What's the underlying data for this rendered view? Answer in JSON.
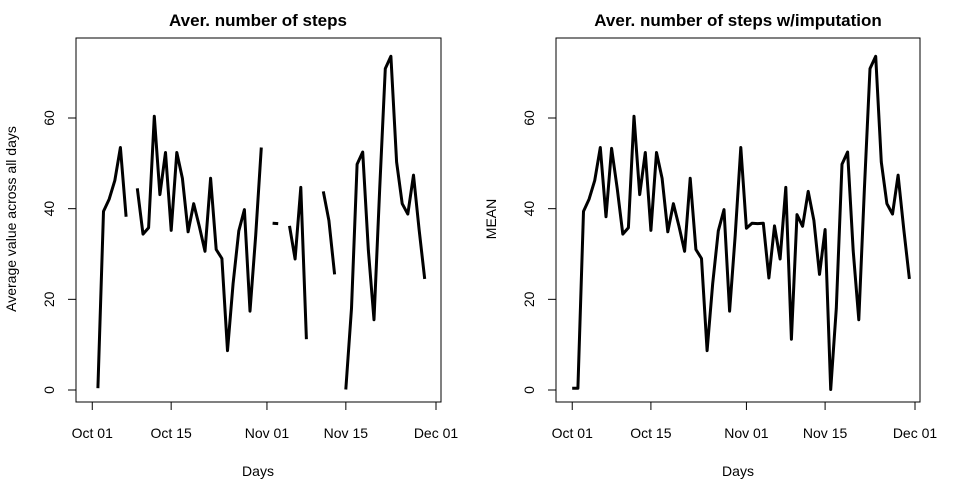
{
  "chart_data": [
    {
      "type": "line",
      "title": "Aver. number of steps",
      "xlabel": "Days",
      "ylabel": "Average value across all days",
      "xlim": [
        "2012-09-29",
        "2012-12-01"
      ],
      "ylim": [
        0,
        75
      ],
      "grid": false,
      "x_ticks": [
        {
          "value": "2012-10-01",
          "label": "Oct 01"
        },
        {
          "value": "2012-10-15",
          "label": "Oct 15"
        },
        {
          "value": "2012-11-01",
          "label": "Nov 01"
        },
        {
          "value": "2012-11-15",
          "label": "Nov 15"
        },
        {
          "value": "2012-12-01",
          "label": "Dec 01"
        }
      ],
      "y_ticks": [
        {
          "value": 0,
          "label": "0"
        },
        {
          "value": 20,
          "label": "20"
        },
        {
          "value": 40,
          "label": "40"
        },
        {
          "value": 60,
          "label": "60"
        }
      ],
      "color": "#000000",
      "series": [
        {
          "x": [
            "2012-10-01",
            "2012-10-02",
            "2012-10-03",
            "2012-10-04",
            "2012-10-05",
            "2012-10-06",
            "2012-10-07",
            "2012-10-08",
            "2012-10-09",
            "2012-10-10",
            "2012-10-11",
            "2012-10-12",
            "2012-10-13",
            "2012-10-14",
            "2012-10-15",
            "2012-10-16",
            "2012-10-17",
            "2012-10-18",
            "2012-10-19",
            "2012-10-20",
            "2012-10-21",
            "2012-10-22",
            "2012-10-23",
            "2012-10-24",
            "2012-10-25",
            "2012-10-26",
            "2012-10-27",
            "2012-10-28",
            "2012-10-29",
            "2012-10-30",
            "2012-10-31",
            "2012-11-01",
            "2012-11-02",
            "2012-11-03",
            "2012-11-04",
            "2012-11-05",
            "2012-11-06",
            "2012-11-07",
            "2012-11-08",
            "2012-11-09",
            "2012-11-10",
            "2012-11-11",
            "2012-11-12",
            "2012-11-13",
            "2012-11-14",
            "2012-11-15",
            "2012-11-16",
            "2012-11-17",
            "2012-11-18",
            "2012-11-19",
            "2012-11-20",
            "2012-11-21",
            "2012-11-22",
            "2012-11-23",
            "2012-11-24",
            "2012-11-25",
            "2012-11-26",
            "2012-11-27",
            "2012-11-28",
            "2012-11-29",
            "2012-11-30"
          ],
          "y": [
            null,
            0.4,
            39.4,
            42.1,
            46.2,
            53.5,
            38.2,
            null,
            44.5,
            34.4,
            35.8,
            60.4,
            43.1,
            52.4,
            35.2,
            52.4,
            46.7,
            34.9,
            41.1,
            36.1,
            30.6,
            46.7,
            31.0,
            29.0,
            8.7,
            23.5,
            35.1,
            39.8,
            17.4,
            34.1,
            53.5,
            null,
            36.8,
            36.7,
            null,
            36.2,
            28.9,
            44.7,
            11.2,
            null,
            null,
            43.8,
            37.4,
            25.5,
            null,
            0.1,
            18.0,
            49.8,
            52.5,
            30.7,
            15.5,
            44.4,
            70.9,
            73.6,
            50.3,
            41.1,
            38.8,
            47.4,
            35.4,
            24.5,
            null
          ]
        }
      ]
    },
    {
      "type": "line",
      "title": "Aver. number of steps w/imputation",
      "xlabel": "Days",
      "ylabel": "MEAN",
      "xlim": [
        "2012-09-29",
        "2012-12-01"
      ],
      "ylim": [
        0,
        75
      ],
      "grid": false,
      "x_ticks": [
        {
          "value": "2012-10-01",
          "label": "Oct 01"
        },
        {
          "value": "2012-10-15",
          "label": "Oct 15"
        },
        {
          "value": "2012-11-01",
          "label": "Nov 01"
        },
        {
          "value": "2012-11-15",
          "label": "Nov 15"
        },
        {
          "value": "2012-12-01",
          "label": "Dec 01"
        }
      ],
      "y_ticks": [
        {
          "value": 0,
          "label": "0"
        },
        {
          "value": 20,
          "label": "20"
        },
        {
          "value": 40,
          "label": "40"
        },
        {
          "value": 60,
          "label": "60"
        }
      ],
      "color": "#000000",
      "series": [
        {
          "x": [
            "2012-10-01",
            "2012-10-02",
            "2012-10-03",
            "2012-10-04",
            "2012-10-05",
            "2012-10-06",
            "2012-10-07",
            "2012-10-08",
            "2012-10-09",
            "2012-10-10",
            "2012-10-11",
            "2012-10-12",
            "2012-10-13",
            "2012-10-14",
            "2012-10-15",
            "2012-10-16",
            "2012-10-17",
            "2012-10-18",
            "2012-10-19",
            "2012-10-20",
            "2012-10-21",
            "2012-10-22",
            "2012-10-23",
            "2012-10-24",
            "2012-10-25",
            "2012-10-26",
            "2012-10-27",
            "2012-10-28",
            "2012-10-29",
            "2012-10-30",
            "2012-10-31",
            "2012-11-01",
            "2012-11-02",
            "2012-11-03",
            "2012-11-04",
            "2012-11-05",
            "2012-11-06",
            "2012-11-07",
            "2012-11-08",
            "2012-11-09",
            "2012-11-10",
            "2012-11-11",
            "2012-11-12",
            "2012-11-13",
            "2012-11-14",
            "2012-11-15",
            "2012-11-16",
            "2012-11-17",
            "2012-11-18",
            "2012-11-19",
            "2012-11-20",
            "2012-11-21",
            "2012-11-22",
            "2012-11-23",
            "2012-11-24",
            "2012-11-25",
            "2012-11-26",
            "2012-11-27",
            "2012-11-28",
            "2012-11-29",
            "2012-11-30"
          ],
          "y": [
            0.4,
            0.4,
            39.4,
            42.1,
            46.2,
            53.5,
            38.2,
            53.3,
            44.5,
            34.4,
            35.8,
            60.4,
            43.1,
            52.4,
            35.2,
            52.4,
            46.7,
            34.9,
            41.1,
            36.1,
            30.6,
            46.7,
            31.0,
            29.0,
            8.7,
            23.5,
            35.1,
            39.8,
            17.4,
            34.1,
            53.5,
            35.7,
            36.8,
            36.7,
            36.8,
            24.7,
            36.2,
            28.9,
            44.7,
            11.2,
            38.7,
            36.1,
            43.8,
            37.4,
            25.5,
            35.4,
            0.1,
            18.0,
            49.8,
            52.5,
            30.7,
            15.5,
            44.4,
            70.9,
            73.6,
            50.3,
            41.1,
            38.8,
            47.4,
            35.4,
            24.5
          ]
        }
      ]
    }
  ]
}
